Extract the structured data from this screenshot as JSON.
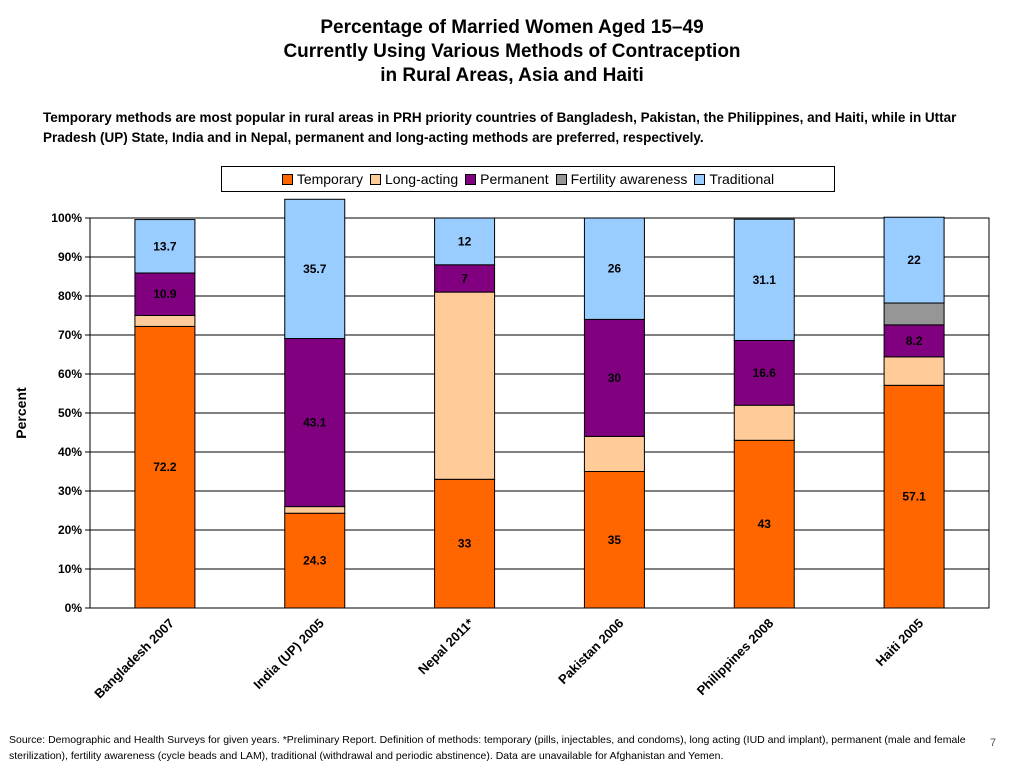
{
  "title_lines": [
    "Percentage of Married Women Aged 15–49",
    "Currently Using Various Methods of Contraception",
    "in Rural Areas, Asia and Haiti"
  ],
  "subtitle": "Temporary methods are most popular in rural areas in PRH priority countries of Bangladesh, Pakistan, the Philippines, and Haiti, while in Uttar Pradesh (UP) State, India and in Nepal, permanent and long-acting methods are preferred, respectively.",
  "footer": "Source: Demographic and Health Surveys for given years. *Preliminary Report. Definition of methods: temporary (pills, injectables, and condoms), long acting (IUD and implant), permanent (male and female sterilization), fertility awareness (cycle beads and LAM), traditional (withdrawal and periodic abstinence). Data are unavailable for Afghanistan and Yemen.",
  "page_number": "7",
  "chart_data": {
    "type": "bar",
    "stacked": true,
    "normalized": true,
    "categories": [
      "Bangladesh 2007",
      "India (UP) 2005",
      "Nepal 2011*",
      "Pakistan 2006",
      "Philippines 2008",
      "Haiti 2005"
    ],
    "series": [
      {
        "name": "Temporary",
        "color": "#FF6600",
        "values": [
          72.2,
          24.3,
          33,
          35,
          43,
          57.1
        ],
        "labels": [
          "72.2",
          "24.3",
          "33",
          "35",
          "43",
          "57.1"
        ]
      },
      {
        "name": "Long-acting",
        "color": "#FFCC99",
        "values": [
          2.8,
          1.7,
          48,
          9,
          9,
          7.3
        ],
        "labels": [
          "",
          "",
          "",
          "",
          "",
          ""
        ]
      },
      {
        "name": "Permanent",
        "color": "#800080",
        "values": [
          10.9,
          43.1,
          7,
          30,
          16.6,
          8.2
        ],
        "labels": [
          "10.9",
          "43.1",
          "7",
          "30",
          "16.6",
          "8.2"
        ]
      },
      {
        "name": "Fertility awareness",
        "color": "#969696",
        "values": [
          0,
          0,
          0,
          0,
          0,
          5.6
        ],
        "labels": [
          "",
          "",
          "",
          "",
          "",
          ""
        ]
      },
      {
        "name": "Traditional",
        "color": "#99CCFF",
        "values": [
          13.7,
          35.7,
          12,
          26,
          31.1,
          22
        ],
        "labels": [
          "13.7",
          "35.7",
          "12",
          "26",
          "31.1",
          "22"
        ]
      }
    ],
    "ylabel": "Percent",
    "ylim": [
      0,
      100
    ],
    "yticks": [
      "0%",
      "10%",
      "20%",
      "30%",
      "40%",
      "50%",
      "60%",
      "70%",
      "80%",
      "90%",
      "100%"
    ],
    "grid": true,
    "legend_position": "top"
  }
}
